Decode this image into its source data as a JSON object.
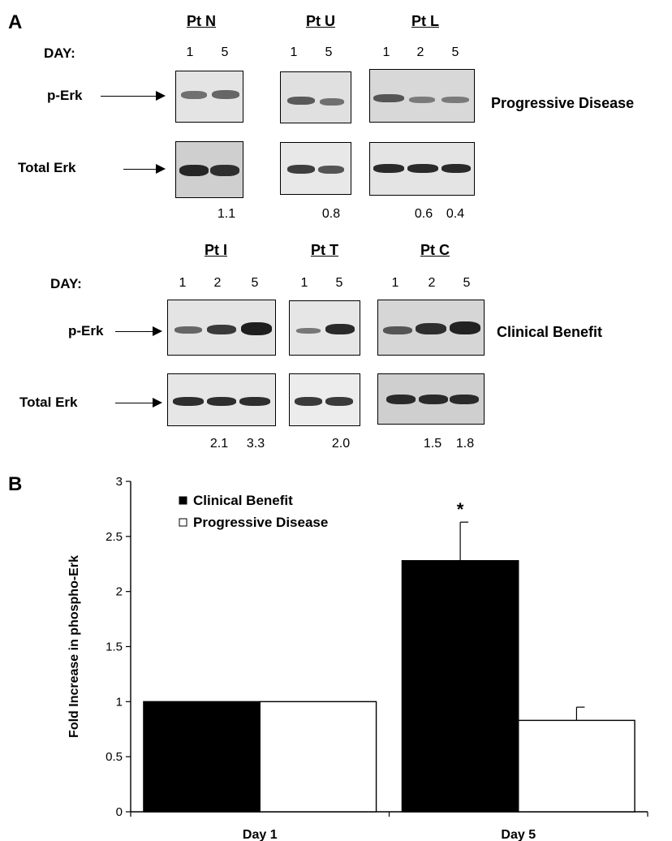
{
  "panel_a": {
    "letter": "A",
    "day_label": "DAY:",
    "perk_label": "p-Erk",
    "total_label": "Total Erk",
    "top_group": {
      "label": "Progressive Disease",
      "patients": [
        {
          "name": "Pt N",
          "days": [
            "1",
            "5"
          ],
          "ratios": [
            "1.1"
          ]
        },
        {
          "name": "Pt U",
          "days": [
            "1",
            "5"
          ],
          "ratios": [
            "0.8"
          ]
        },
        {
          "name": "Pt L",
          "days": [
            "1",
            "2",
            "5"
          ],
          "ratios": [
            "0.6",
            "0.4"
          ]
        }
      ]
    },
    "bottom_group": {
      "label": "Clinical Benefit",
      "patients": [
        {
          "name": "Pt I",
          "days": [
            "1",
            "2",
            "5"
          ],
          "ratios": [
            "2.1",
            "3.3"
          ]
        },
        {
          "name": "Pt T",
          "days": [
            "1",
            "5"
          ],
          "ratios": [
            "2.0"
          ]
        },
        {
          "name": "Pt C",
          "days": [
            "1",
            "2",
            "5"
          ],
          "ratios": [
            "1.5",
            "1.8"
          ]
        }
      ]
    },
    "blot_colors": {
      "light": "#dcdcdc",
      "dark": "#c4c4c4",
      "band": "#2a2a2a"
    }
  },
  "panel_b": {
    "letter": "B"
  },
  "chart_data": {
    "type": "bar",
    "categories": [
      "Day 1",
      "Day 5"
    ],
    "series": [
      {
        "name": "Clinical Benefit",
        "values": [
          1.0,
          2.28
        ],
        "errors": [
          0,
          0.35
        ],
        "color": "#000000"
      },
      {
        "name": "Progressive Disease",
        "values": [
          1.0,
          0.83
        ],
        "errors": [
          0,
          0.12
        ],
        "color": "#ffffff"
      }
    ],
    "ylabel": "Fold Increase in phospho-Erk",
    "ylim": [
      0,
      3
    ],
    "yticks": [
      "0",
      "0.5",
      "1",
      "1.5",
      "2",
      "2.5",
      "3"
    ],
    "annotation": "*",
    "legend_placement": "top-left",
    "grid": false
  }
}
